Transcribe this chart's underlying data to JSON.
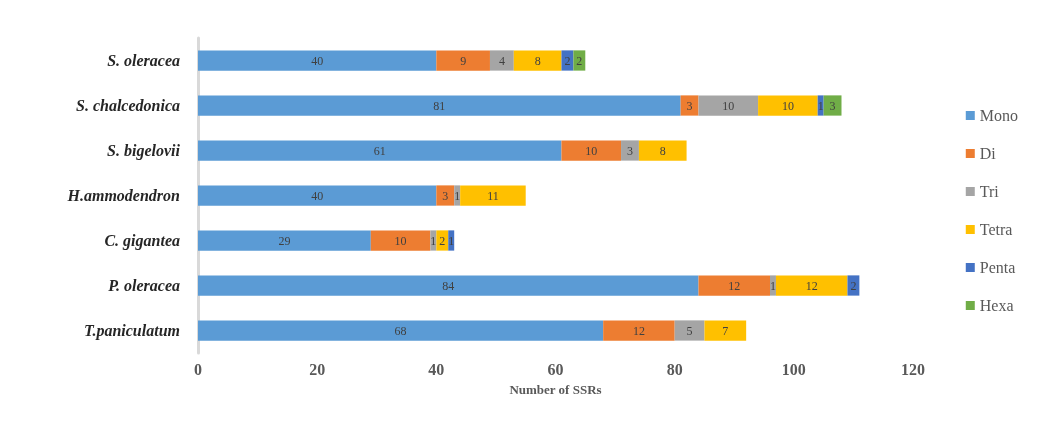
{
  "chart_data": {
    "type": "bar",
    "orientation": "horizontal",
    "stacked": true,
    "xlabel": "Number of SSRs",
    "categories": [
      "S. oleracea",
      "S. chalcedonica",
      "S. bigelovii",
      "H.ammodendron",
      "C. gigantea",
      "P. oleracea",
      "T.paniculatum"
    ],
    "series": [
      {
        "name": "Mono",
        "color": "#5b9bd5",
        "values": [
          40,
          81,
          61,
          40,
          29,
          84,
          68
        ]
      },
      {
        "name": "Di",
        "color": "#ed7d31",
        "values": [
          9,
          3,
          10,
          3,
          10,
          12,
          12
        ]
      },
      {
        "name": "Tri",
        "color": "#a5a5a5",
        "values": [
          4,
          10,
          3,
          1,
          1,
          1,
          5
        ]
      },
      {
        "name": "Tetra",
        "color": "#ffc000",
        "values": [
          8,
          10,
          8,
          11,
          2,
          12,
          7
        ]
      },
      {
        "name": "Penta",
        "color": "#4472c4",
        "values": [
          2,
          1,
          null,
          null,
          1,
          2,
          null
        ]
      },
      {
        "name": "Hexa",
        "color": "#70ad47",
        "values": [
          2,
          3,
          null,
          null,
          null,
          null,
          null
        ]
      }
    ],
    "xlim": [
      0,
      120
    ],
    "xticks": [
      0,
      20,
      40,
      60,
      80,
      100,
      120
    ],
    "grid": false,
    "legend": "right",
    "data_labels": true
  }
}
